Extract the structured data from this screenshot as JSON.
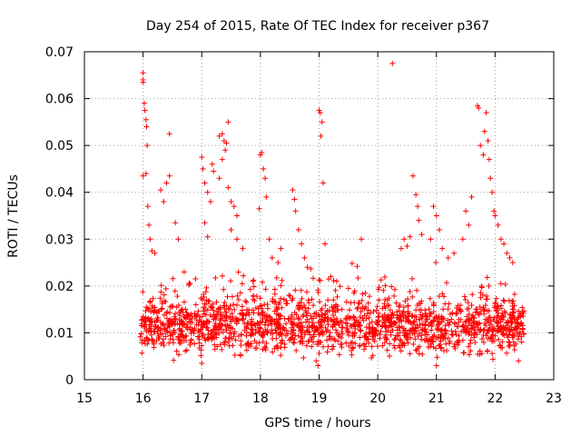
{
  "chart_data": {
    "type": "scatter",
    "title": "Day 254 of 2015, Rate Of TEC Index for receiver p367",
    "xlabel": "GPS time / hours",
    "ylabel": "ROTI / TECUs",
    "xlim": [
      15,
      23
    ],
    "ylim": [
      0,
      0.07
    ],
    "x_ticks": [
      "15",
      "16",
      "17",
      "18",
      "19",
      "20",
      "21",
      "22",
      "23"
    ],
    "y_ticks": [
      "0",
      "0.01",
      "0.02",
      "0.03",
      "0.04",
      "0.05",
      "0.06",
      "0.07"
    ],
    "grid": true,
    "marker": "+",
    "color": "#ff0000",
    "series": [
      {
        "name": "ROTI",
        "points": [
          [
            16.0,
            0.0655
          ],
          [
            16.0,
            0.064
          ],
          [
            16.0,
            0.0635
          ],
          [
            16.02,
            0.059
          ],
          [
            16.03,
            0.0575
          ],
          [
            16.05,
            0.0555
          ],
          [
            16.06,
            0.054
          ],
          [
            16.07,
            0.05
          ],
          [
            16.05,
            0.044
          ],
          [
            16.0,
            0.0435
          ],
          [
            16.08,
            0.037
          ],
          [
            16.1,
            0.033
          ],
          [
            16.12,
            0.03
          ],
          [
            16.15,
            0.0275
          ],
          [
            16.2,
            0.027
          ],
          [
            16.3,
            0.0405
          ],
          [
            16.35,
            0.038
          ],
          [
            16.45,
            0.0525
          ],
          [
            16.45,
            0.0435
          ],
          [
            16.4,
            0.042
          ],
          [
            16.55,
            0.0335
          ],
          [
            16.6,
            0.03
          ],
          [
            16.7,
            0.023
          ],
          [
            16.8,
            0.0205
          ],
          [
            17.0,
            0.0475
          ],
          [
            17.02,
            0.045
          ],
          [
            17.05,
            0.042
          ],
          [
            17.1,
            0.04
          ],
          [
            17.15,
            0.038
          ],
          [
            17.05,
            0.0335
          ],
          [
            17.1,
            0.0305
          ],
          [
            17.18,
            0.046
          ],
          [
            17.2,
            0.0445
          ],
          [
            17.3,
            0.052
          ],
          [
            17.35,
            0.0525
          ],
          [
            17.38,
            0.051
          ],
          [
            17.42,
            0.0505
          ],
          [
            17.45,
            0.055
          ],
          [
            17.4,
            0.049
          ],
          [
            17.35,
            0.047
          ],
          [
            17.3,
            0.043
          ],
          [
            17.45,
            0.041
          ],
          [
            17.5,
            0.038
          ],
          [
            17.55,
            0.037
          ],
          [
            17.6,
            0.035
          ],
          [
            17.5,
            0.032
          ],
          [
            17.6,
            0.03
          ],
          [
            17.7,
            0.028
          ],
          [
            17.98,
            0.0365
          ],
          [
            18.0,
            0.048
          ],
          [
            18.02,
            0.0485
          ],
          [
            18.05,
            0.045
          ],
          [
            18.08,
            0.043
          ],
          [
            18.1,
            0.039
          ],
          [
            18.15,
            0.03
          ],
          [
            18.2,
            0.026
          ],
          [
            18.3,
            0.025
          ],
          [
            18.35,
            0.028
          ],
          [
            18.55,
            0.0405
          ],
          [
            18.58,
            0.0385
          ],
          [
            18.6,
            0.036
          ],
          [
            18.65,
            0.032
          ],
          [
            18.7,
            0.029
          ],
          [
            18.75,
            0.026
          ],
          [
            18.8,
            0.024
          ],
          [
            19.0,
            0.0575
          ],
          [
            19.02,
            0.057
          ],
          [
            19.05,
            0.055
          ],
          [
            19.03,
            0.052
          ],
          [
            19.07,
            0.042
          ],
          [
            19.1,
            0.029
          ],
          [
            19.2,
            0.022
          ],
          [
            19.3,
            0.021
          ],
          [
            19.5,
            0.0195
          ],
          [
            19.72,
            0.03
          ],
          [
            20.25,
            0.0675
          ],
          [
            20.4,
            0.028
          ],
          [
            20.45,
            0.03
          ],
          [
            20.5,
            0.0285
          ],
          [
            20.55,
            0.0305
          ],
          [
            20.6,
            0.0435
          ],
          [
            20.65,
            0.0395
          ],
          [
            20.68,
            0.037
          ],
          [
            20.7,
            0.034
          ],
          [
            20.75,
            0.031
          ],
          [
            20.9,
            0.03
          ],
          [
            20.95,
            0.037
          ],
          [
            21.0,
            0.035
          ],
          [
            21.05,
            0.032
          ],
          [
            21.1,
            0.028
          ],
          [
            21.2,
            0.026
          ],
          [
            21.3,
            0.027
          ],
          [
            21.45,
            0.03
          ],
          [
            21.5,
            0.036
          ],
          [
            21.55,
            0.033
          ],
          [
            21.6,
            0.039
          ],
          [
            21.7,
            0.0585
          ],
          [
            21.72,
            0.058
          ],
          [
            21.75,
            0.05
          ],
          [
            21.8,
            0.048
          ],
          [
            21.82,
            0.053
          ],
          [
            21.85,
            0.057
          ],
          [
            21.88,
            0.051
          ],
          [
            21.9,
            0.047
          ],
          [
            21.92,
            0.043
          ],
          [
            21.95,
            0.04
          ],
          [
            21.98,
            0.036
          ],
          [
            22.0,
            0.035
          ],
          [
            22.05,
            0.033
          ],
          [
            22.1,
            0.03
          ],
          [
            22.15,
            0.029
          ],
          [
            22.2,
            0.027
          ],
          [
            22.25,
            0.026
          ],
          [
            22.3,
            0.025
          ],
          [
            18.98,
            0.003
          ],
          [
            18.95,
            0.004
          ],
          [
            17.0,
            0.0035
          ],
          [
            21.0,
            0.003
          ],
          [
            22.4,
            0.004
          ]
        ]
      }
    ],
    "dense_band": {
      "x_range": [
        15.95,
        22.5
      ],
      "y_min": 0.003,
      "y_max": 0.019,
      "y_center": 0.0095
    }
  }
}
